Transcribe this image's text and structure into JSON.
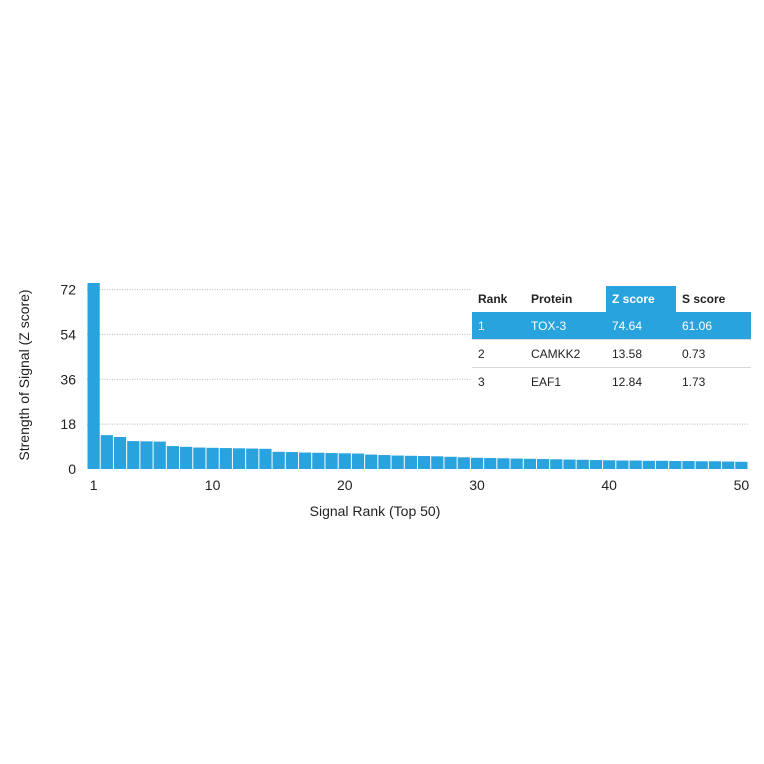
{
  "chart_data": {
    "type": "bar",
    "title": "",
    "xlabel": "Signal Rank (Top 50)",
    "ylabel": "Strength of Signal (Z score)",
    "ylim": [
      0,
      74.64
    ],
    "y_ticks": [
      "0",
      "18",
      "36",
      "54",
      "72"
    ],
    "x_ticks": [
      "1",
      "10",
      "20",
      "30",
      "40",
      "50"
    ],
    "grid": "horizontal dotted",
    "bar_color": "#29a3dd",
    "x": [
      1,
      2,
      3,
      4,
      5,
      6,
      7,
      8,
      9,
      10,
      11,
      12,
      13,
      14,
      15,
      16,
      17,
      18,
      19,
      20,
      21,
      22,
      23,
      24,
      25,
      26,
      27,
      28,
      29,
      30,
      31,
      32,
      33,
      34,
      35,
      36,
      37,
      38,
      39,
      40,
      41,
      42,
      43,
      44,
      45,
      46,
      47,
      48,
      49,
      50
    ],
    "values": [
      74.64,
      13.58,
      12.84,
      11.2,
      11.1,
      11.0,
      9.2,
      8.9,
      8.6,
      8.5,
      8.4,
      8.3,
      8.2,
      8.1,
      6.9,
      6.8,
      6.6,
      6.5,
      6.4,
      6.3,
      6.2,
      5.8,
      5.6,
      5.4,
      5.3,
      5.2,
      5.1,
      4.9,
      4.7,
      4.5,
      4.4,
      4.3,
      4.2,
      4.1,
      4.0,
      3.9,
      3.8,
      3.7,
      3.6,
      3.5,
      3.4,
      3.4,
      3.3,
      3.3,
      3.2,
      3.2,
      3.1,
      3.1,
      3.0,
      2.9
    ]
  },
  "table": {
    "headers": [
      "Rank",
      "Protein",
      "Z score",
      "S score"
    ],
    "rows": [
      [
        "1",
        "TOX-3",
        "74.64",
        "61.06"
      ],
      [
        "2",
        "CAMKK2",
        "13.58",
        "0.73"
      ],
      [
        "3",
        "EAF1",
        "12.84",
        "1.73"
      ]
    ],
    "highlight_color": "#29a3dd"
  }
}
